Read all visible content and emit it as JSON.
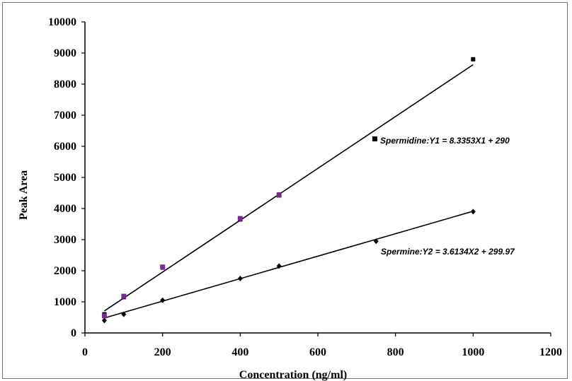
{
  "chart_data": {
    "type": "scatter",
    "title": "",
    "xlabel": "Concentration (ng/ml)",
    "ylabel": "Peak Area",
    "xlim": [
      0,
      1200
    ],
    "ylim": [
      0,
      10000
    ],
    "x_ticks": [
      0,
      200,
      400,
      600,
      800,
      1000,
      1200
    ],
    "y_ticks": [
      0,
      1000,
      2000,
      3000,
      4000,
      5000,
      6000,
      7000,
      8000,
      9000,
      10000
    ],
    "grid": false,
    "legend": "none",
    "series": [
      {
        "name": "Spermidine",
        "marker": "square",
        "color": "#000000",
        "x": [
          50,
          100,
          200,
          400,
          500,
          1000
        ],
        "y": [
          600,
          1150,
          2100,
          3650,
          4450,
          8800
        ],
        "fit": {
          "slope": 8.3353,
          "intercept": 290
        },
        "equation": "Spermidine:Y1 = 8.3353X1 + 290"
      },
      {
        "name": "Spermine",
        "marker": "diamond",
        "color": "#000000",
        "x": [
          50,
          100,
          200,
          400,
          500,
          750,
          1000
        ],
        "y": [
          400,
          600,
          1050,
          1750,
          2150,
          2950,
          3900
        ],
        "fit": {
          "slope": 3.6134,
          "intercept": 299.97
        },
        "equation": "Spermine:Y2 = 3.6134X2 + 299.97"
      }
    ],
    "extra_points": [
      {
        "x": 50,
        "y": 550,
        "color": "#7a2a8c"
      },
      {
        "x": 100,
        "y": 1180,
        "color": "#7a2a8c"
      },
      {
        "x": 200,
        "y": 2120,
        "color": "#7a2a8c"
      },
      {
        "x": 400,
        "y": 3680,
        "color": "#7a2a8c"
      },
      {
        "x": 500,
        "y": 4430,
        "color": "#7a2a8c"
      }
    ],
    "equation_marker_color": "#000000"
  }
}
